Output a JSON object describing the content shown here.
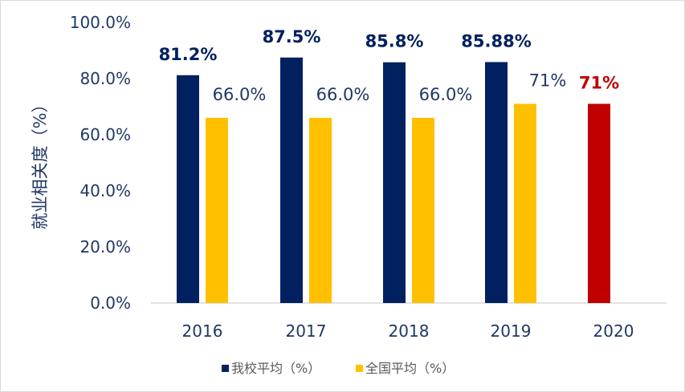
{
  "chart_data": {
    "type": "bar",
    "categories": [
      "2016",
      "2017",
      "2018",
      "2019",
      "2020"
    ],
    "ylabel": "就业相关度（%）",
    "ylim": [
      0,
      100
    ],
    "yticks": [
      "0.0%",
      "20.0%",
      "40.0%",
      "60.0%",
      "80.0%",
      "100.0%"
    ],
    "grid": false,
    "legend_position": "bottom",
    "series": [
      {
        "name": "我校平均（%）",
        "color": "#002060",
        "values": [
          81.2,
          87.5,
          85.8,
          85.88,
          71
        ],
        "labels": [
          "81.2%",
          "87.5%",
          "85.8%",
          "85.88%",
          "71%"
        ],
        "point_colors": [
          null,
          null,
          null,
          null,
          "#c00000"
        ]
      },
      {
        "name": "全国平均（%）",
        "color": "#ffc000",
        "values": [
          66.0,
          66.0,
          66.0,
          71,
          null
        ],
        "labels": [
          "66.0%",
          "66.0%",
          "66.0%",
          "71%",
          null
        ]
      }
    ]
  }
}
